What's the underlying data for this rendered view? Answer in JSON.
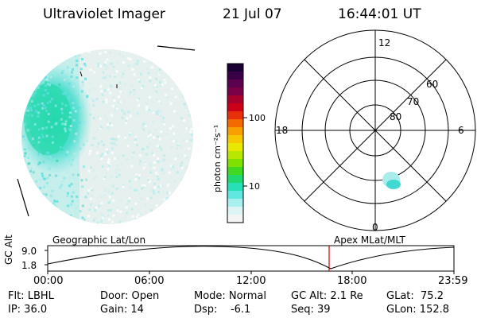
{
  "header": {
    "instrument": "Ultraviolet Imager",
    "date": "21 Jul 07",
    "time": "16:44:01 UT"
  },
  "colorbar": {
    "unit_label": "photon cm⁻²s⁻¹",
    "tick_labels": [
      "100",
      "10"
    ],
    "colors": [
      "#1a0033",
      "#3a0048",
      "#5c0050",
      "#7a0048",
      "#a8002c",
      "#cc0018",
      "#e8300a",
      "#f26a00",
      "#f8a000",
      "#f5c800",
      "#e8e800",
      "#b8e800",
      "#80e000",
      "#40d820",
      "#20d870",
      "#28e0b8",
      "#60e8e0",
      "#a8f0f0",
      "#dcf4f4",
      "#f4f4f4"
    ]
  },
  "polar_plot": {
    "mlt_labels": [
      "12",
      "18",
      "6",
      "0"
    ],
    "lat_labels": [
      "60",
      "70",
      "80"
    ]
  },
  "timeline": {
    "left_title": "Geographic Lat/Lon",
    "right_title": "Apex MLat/MLT",
    "y_axis_title": "GC Alt",
    "y_ticks": [
      "9.0",
      "1.8"
    ],
    "x_ticks": [
      "00:00",
      "06:00",
      "12:00",
      "18:00",
      "23:59"
    ]
  },
  "info": {
    "filter": "Flt: LBHL",
    "ip": "IP: 36.0",
    "door": "Door: Open",
    "gain": "Gain: 14",
    "mode": "Mode: Normal",
    "dsp": "Dsp:    -6.1",
    "gc_alt": "GC Alt: 2.1 Re",
    "seq": "Seq: 39",
    "glat": "GLat:  75.2",
    "glon": "GLon: 152.8"
  }
}
